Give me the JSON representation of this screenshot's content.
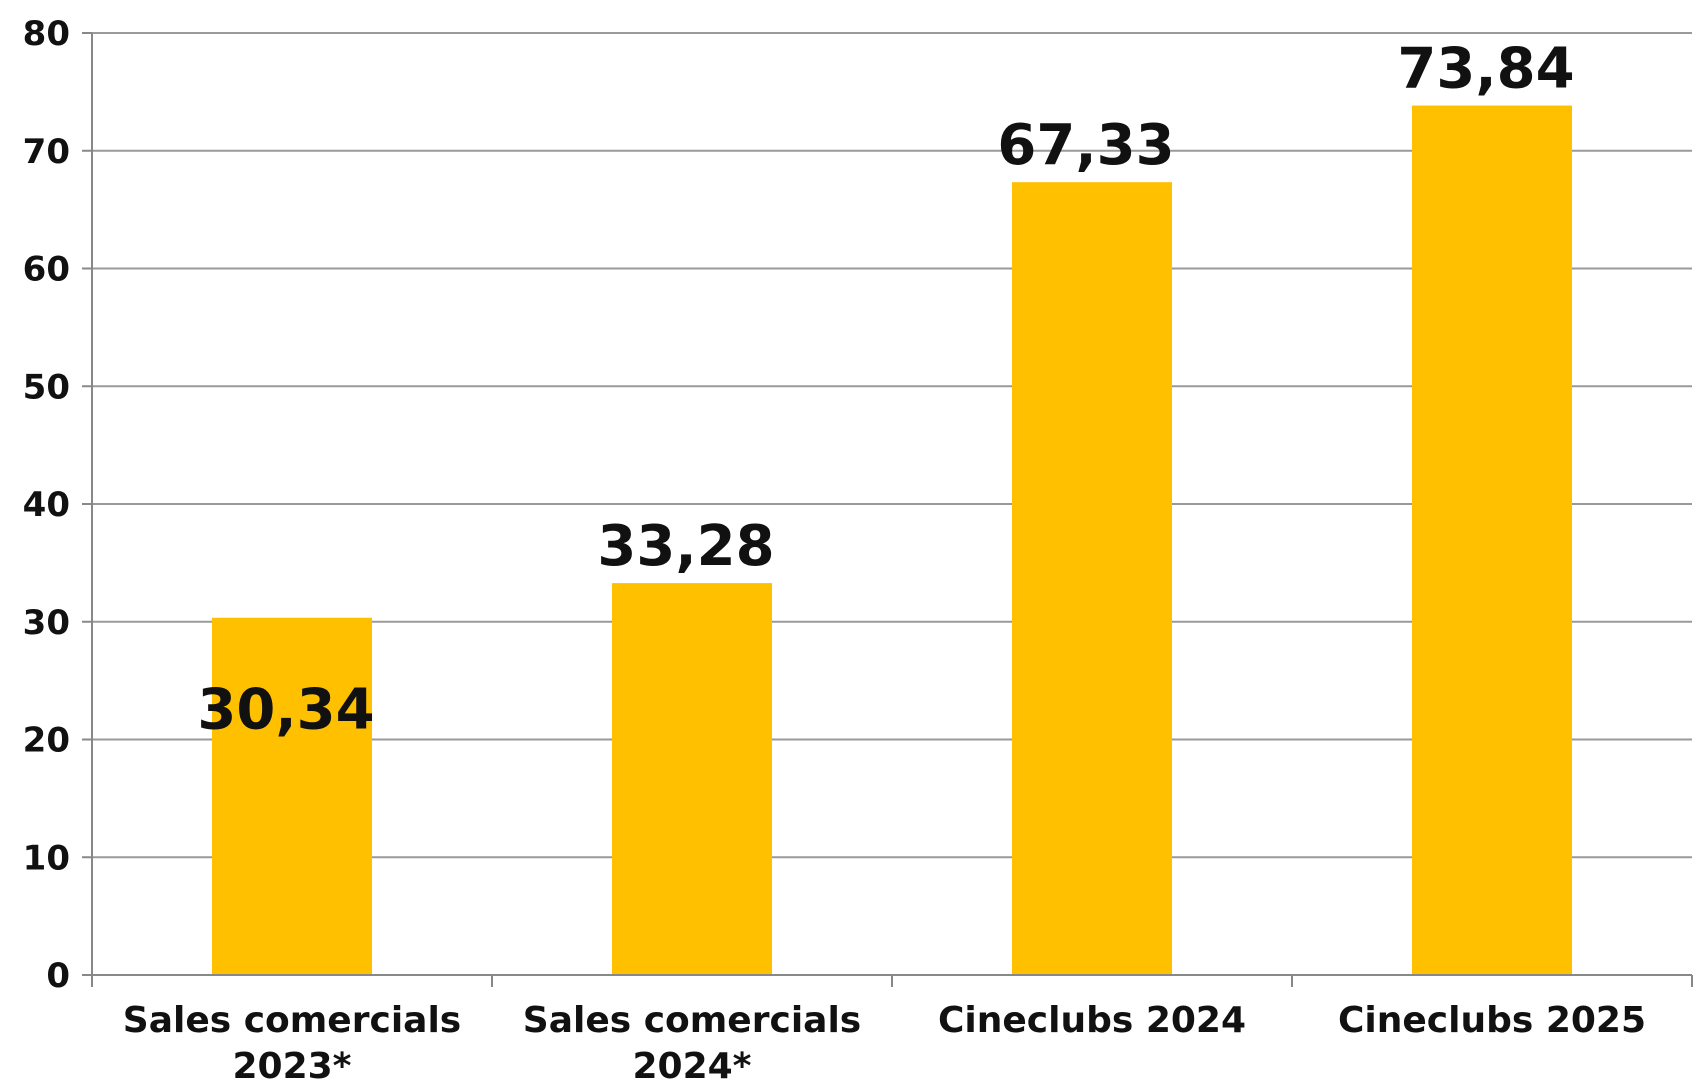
{
  "chart_data": {
    "type": "bar",
    "categories": [
      [
        "Sales comercials",
        "2023*"
      ],
      [
        "Sales comercials",
        "2024*"
      ],
      [
        "Cineclubs 2024"
      ],
      [
        "Cineclubs 2025"
      ]
    ],
    "values": [
      30.34,
      33.28,
      67.33,
      73.84
    ],
    "data_labels": [
      "30,34",
      "33,28",
      "67,33",
      "73,84"
    ],
    "yticks": [
      "0",
      "10",
      "20",
      "30",
      "40",
      "50",
      "60",
      "70",
      "80"
    ],
    "ylim": [
      0,
      80
    ],
    "title": "",
    "xlabel": "",
    "ylabel": "",
    "grid": true,
    "legend": "none",
    "bar_color": "#ffc000"
  }
}
